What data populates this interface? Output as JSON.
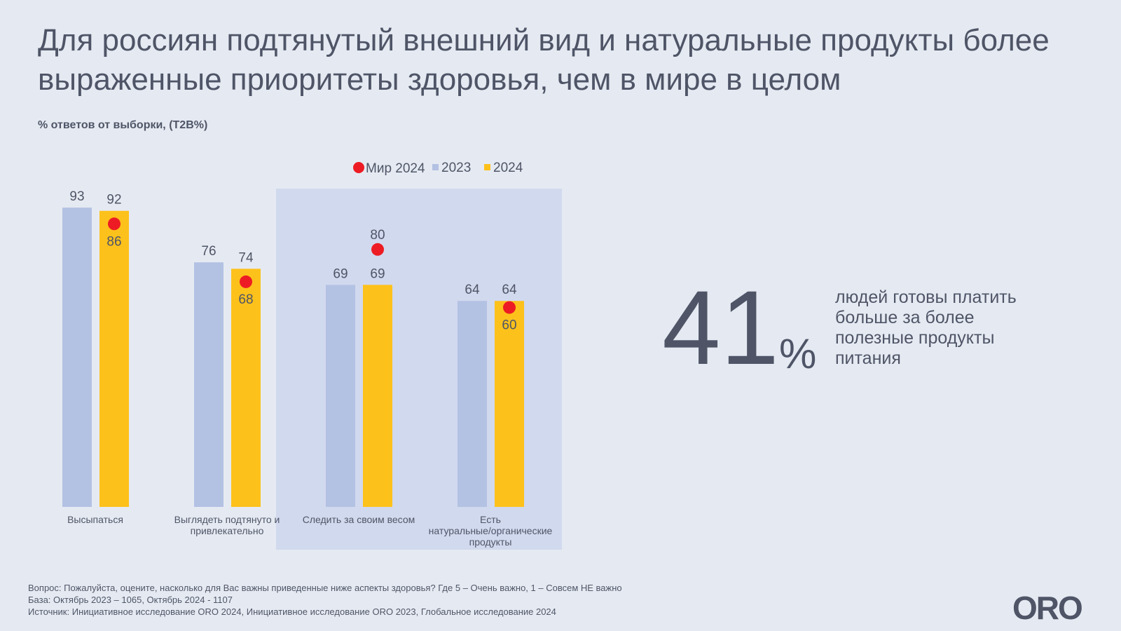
{
  "title": "Для россиян подтянутый внешний вид и натуральные продукты более выраженные приоритеты здоровья, чем в мире в целом",
  "subtitle": "% ответов от выборки, (T2B%)",
  "chart_data": {
    "type": "bar",
    "categories": [
      "Высыпаться",
      "Выглядеть подтянуто и привлекательно",
      "Следить за своим весом",
      "Есть натуральные/органические продукты"
    ],
    "series": [
      {
        "name": "2023",
        "values": [
          93,
          76,
          69,
          64
        ],
        "color": "#b3c1e3"
      },
      {
        "name": "2024",
        "values": [
          92,
          74,
          69,
          64
        ],
        "color": "#fdc11b"
      },
      {
        "name": "Мир 2024",
        "values": [
          86,
          68,
          80,
          60
        ],
        "color": "#ed1c24",
        "marker": "dot"
      }
    ],
    "highlighted_categories": [
      2,
      3
    ],
    "ylim": [
      0,
      100
    ],
    "grid": false,
    "legend": "top-center"
  },
  "callout": {
    "value": "41",
    "unit": "%",
    "text": "людей  готовы платить больше за более полезные продукты питания"
  },
  "notes": [
    "Вопрос: Пожалуйста, оцените, насколько для Вас важны приведенные ниже аспекты здоровья? Где 5 – Очень важно, 1 – Совсем НЕ важно",
    "База: Октябрь 2023 – 1065, Октябрь 2024 - 1107",
    "Источник: Инициативное исследование ORO 2024, Инициативное исследование ORO 2023, Глобальное исследование 2024"
  ],
  "logo": "ORO"
}
